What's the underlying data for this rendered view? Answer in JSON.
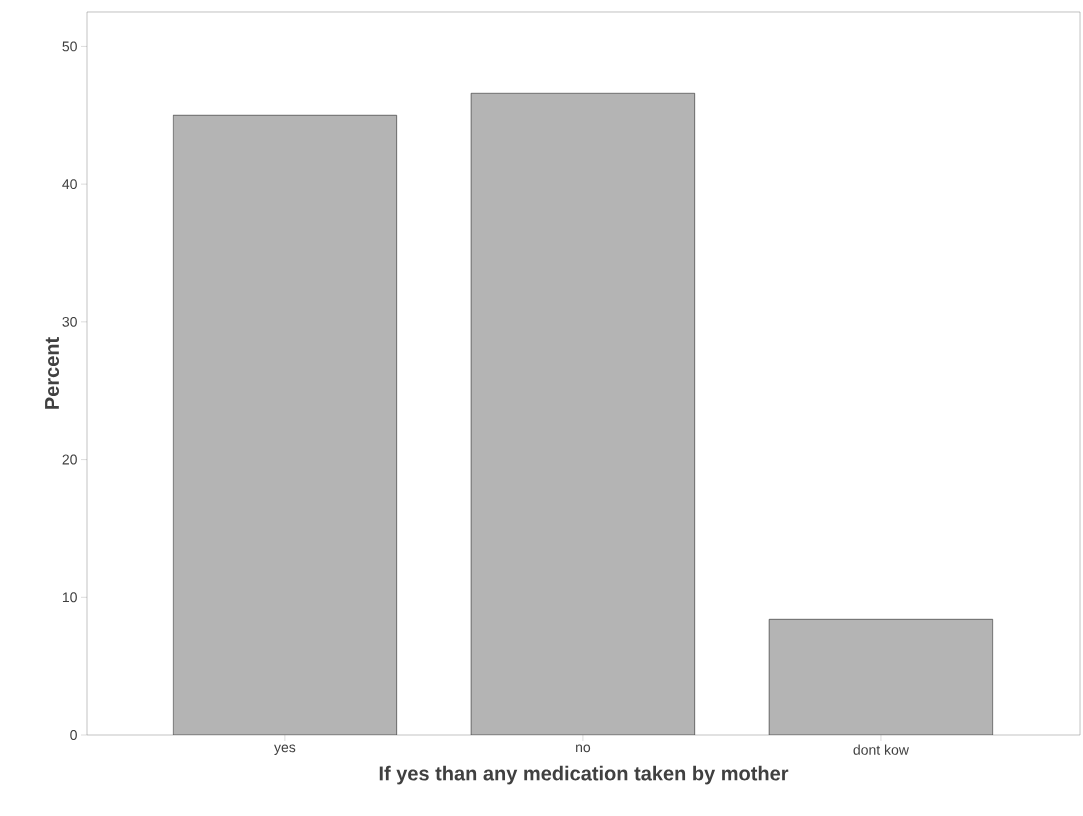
{
  "chart_data": {
    "type": "bar",
    "xlabel": "If yes than any medication taken by mother",
    "ylabel": "Percent",
    "categories": [
      "yes",
      "no",
      "dont kow"
    ],
    "values": [
      45,
      46.6,
      8.4
    ],
    "color": "#b4b4b4",
    "ylim": [
      0,
      52.5
    ],
    "yticks": [
      0,
      10,
      20,
      30,
      40,
      50
    ],
    "grid": false
  }
}
